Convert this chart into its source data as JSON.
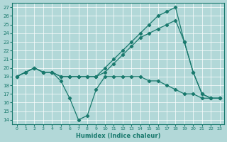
{
  "xlabel": "Humidex (Indice chaleur)",
  "xlim": [
    -0.5,
    23.5
  ],
  "ylim": [
    13.5,
    27.5
  ],
  "yticks": [
    14,
    15,
    16,
    17,
    18,
    19,
    20,
    21,
    22,
    23,
    24,
    25,
    26,
    27
  ],
  "xticks": [
    0,
    1,
    2,
    3,
    4,
    5,
    6,
    7,
    8,
    9,
    10,
    11,
    12,
    13,
    14,
    15,
    16,
    17,
    18,
    19,
    20,
    21,
    22,
    23
  ],
  "bg_color": "#b2d8d8",
  "line_color": "#1a7a6e",
  "grid_color": "#ffffff",
  "lines": [
    {
      "x": [
        0,
        1,
        2,
        3,
        4,
        5,
        6,
        7,
        8,
        9,
        10,
        11,
        12,
        13,
        14,
        15,
        16,
        17,
        18,
        19,
        20,
        21,
        22,
        23
      ],
      "y": [
        19,
        19.5,
        20,
        19.5,
        19.5,
        19,
        19,
        19,
        19,
        19,
        20,
        21,
        22,
        23,
        24,
        25,
        26,
        26.5,
        27,
        23,
        19.5,
        17,
        16.5,
        16.5
      ]
    },
    {
      "x": [
        0,
        1,
        2,
        3,
        4,
        5,
        6,
        7,
        8,
        9,
        10,
        11,
        12,
        13,
        14,
        15,
        16,
        17,
        18,
        19,
        20,
        21,
        22,
        23
      ],
      "y": [
        19,
        19.5,
        20,
        19.5,
        19.5,
        19,
        19,
        19,
        19,
        19,
        19.5,
        20.5,
        21.5,
        22.5,
        23.5,
        24,
        24.5,
        25,
        25.5,
        23,
        19.5,
        17,
        16.5,
        16.5
      ]
    },
    {
      "x": [
        0,
        1,
        2,
        3,
        4,
        5,
        6,
        7,
        8,
        9,
        10,
        11,
        12,
        13,
        14,
        15,
        16,
        17,
        18,
        19,
        20,
        21,
        22,
        23
      ],
      "y": [
        19,
        19.5,
        20,
        19.5,
        19.5,
        18.5,
        16.5,
        14,
        14.5,
        17.5,
        19,
        19,
        19,
        19,
        19,
        18.5,
        18.5,
        18,
        17.5,
        17,
        17,
        16.5,
        16.5,
        16.5
      ]
    }
  ]
}
